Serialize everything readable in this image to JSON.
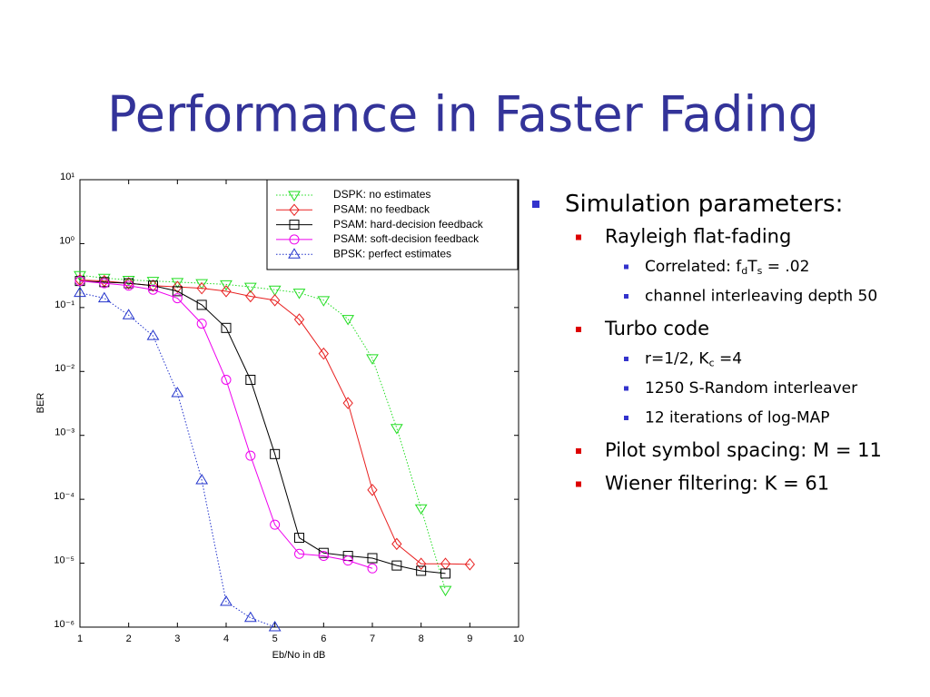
{
  "slide_title": "Performance in Faster Fading",
  "chart_data": {
    "type": "line",
    "xlabel": "Eb/No in dB",
    "ylabel": "BER",
    "xlim": [
      1,
      10
    ],
    "ylim": [
      1e-06,
      10
    ],
    "log_y": true,
    "grid": false,
    "legend": "upper right",
    "xticks": [
      1,
      2,
      3,
      4,
      5,
      6,
      7,
      8,
      9,
      10
    ],
    "yticks": [
      {
        "value": 1e-06,
        "label": "10⁻⁶"
      },
      {
        "value": 1e-05,
        "label": "10⁻⁵"
      },
      {
        "value": 0.0001,
        "label": "10⁻⁴"
      },
      {
        "value": 0.001,
        "label": "10⁻³"
      },
      {
        "value": 0.01,
        "label": "10⁻²"
      },
      {
        "value": 0.1,
        "label": "10⁻¹"
      },
      {
        "value": 1,
        "label": "10⁰"
      },
      {
        "value": 10,
        "label": "10¹"
      }
    ],
    "series": [
      {
        "name": "DSPK: no estimates",
        "color": "#22dd22",
        "dash": "dotted",
        "marker": "triangle-down",
        "x": [
          1,
          1.5,
          2,
          2.5,
          3,
          3.5,
          4,
          4.5,
          5,
          5.5,
          6,
          6.5,
          7,
          7.5,
          8,
          8.5
        ],
        "values": [
          0.32,
          0.29,
          0.27,
          0.26,
          0.25,
          0.24,
          0.23,
          0.21,
          0.19,
          0.17,
          0.13,
          0.066,
          0.016,
          0.0013,
          7.2e-05,
          3.8e-06
        ]
      },
      {
        "name": "PSAM: no feedback",
        "color": "#e82020",
        "dash": "solid",
        "marker": "diamond",
        "x": [
          1,
          1.5,
          2,
          2.5,
          3,
          3.5,
          4,
          4.5,
          5,
          5.5,
          6,
          6.5,
          7,
          7.5,
          8,
          8.5,
          9
        ],
        "values": [
          0.27,
          0.26,
          0.24,
          0.22,
          0.21,
          0.2,
          0.18,
          0.15,
          0.13,
          0.065,
          0.019,
          0.0032,
          0.00014,
          2e-05,
          9.8e-06,
          9.8e-06,
          9.6e-06
        ]
      },
      {
        "name": "PSAM: hard-decision feedback",
        "color": "#000000",
        "dash": "solid",
        "marker": "square",
        "x": [
          1,
          1.5,
          2,
          2.5,
          3,
          3.5,
          4,
          4.5,
          5,
          5.5,
          6,
          6.5,
          7,
          7.5,
          8,
          8.5
        ],
        "values": [
          0.26,
          0.25,
          0.24,
          0.22,
          0.18,
          0.11,
          0.048,
          0.0074,
          0.00051,
          2.5e-05,
          1.45e-05,
          1.3e-05,
          1.2e-05,
          9.2e-06,
          7.6e-06,
          6.9e-06
        ]
      },
      {
        "name": "PSAM: soft-decision feedback",
        "color": "#ee00ee",
        "dash": "solid",
        "marker": "circle",
        "x": [
          1,
          1.5,
          2,
          2.5,
          3,
          3.5,
          4,
          4.5,
          5,
          5.5,
          6,
          6.5,
          7
        ],
        "values": [
          0.26,
          0.24,
          0.22,
          0.19,
          0.14,
          0.056,
          0.0074,
          0.00048,
          4e-05,
          1.4e-05,
          1.3e-05,
          1.1e-05,
          8.3e-06
        ]
      },
      {
        "name": "BPSK: perfect estimates",
        "color": "#2233cc",
        "dash": "dotted",
        "marker": "triangle-up",
        "x": [
          1,
          1.5,
          2,
          2.5,
          3,
          3.5,
          4,
          4.5,
          5
        ],
        "values": [
          0.17,
          0.14,
          0.076,
          0.036,
          0.0046,
          0.0002,
          2.5e-06,
          1.4e-06,
          1e-06
        ]
      }
    ]
  },
  "bullets": [
    {
      "segments": [
        {
          "text": "Simulation parameters:"
        }
      ],
      "children": [
        {
          "segments": [
            {
              "text": "Rayleigh flat-fading"
            }
          ],
          "children": [
            {
              "segments": [
                {
                  "text": "Correlated: f"
                },
                {
                  "sub": "d"
                },
                {
                  "text": "T"
                },
                {
                  "sub": "s"
                },
                {
                  "text": " = .02"
                }
              ]
            },
            {
              "segments": [
                {
                  "text": "channel interleaving depth 50"
                }
              ]
            }
          ]
        },
        {
          "segments": [
            {
              "text": "Turbo code"
            }
          ],
          "children": [
            {
              "segments": [
                {
                  "text": "r=1/2, K"
                },
                {
                  "sub": "c"
                },
                {
                  "text": " =4"
                }
              ]
            },
            {
              "segments": [
                {
                  "text": "1250 S-Random interleaver"
                }
              ]
            },
            {
              "segments": [
                {
                  "text": "12 iterations of log-MAP"
                }
              ]
            }
          ]
        },
        {
          "segments": [
            {
              "text": "Pilot symbol spacing: M = 11"
            }
          ]
        },
        {
          "segments": [
            {
              "text": "Wiener filtering: K = 61"
            }
          ]
        }
      ]
    }
  ]
}
